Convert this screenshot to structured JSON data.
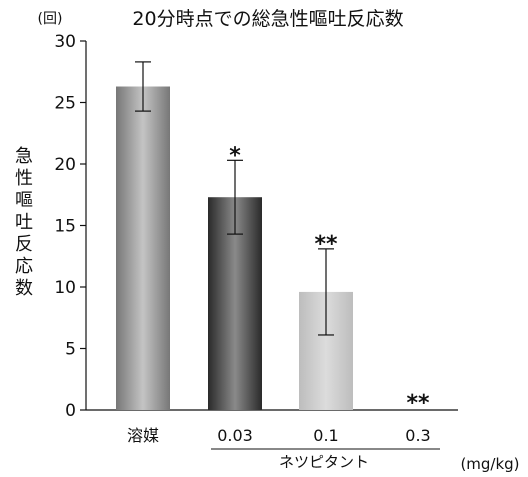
{
  "chart_data": {
    "type": "bar",
    "title": "20分時点での総急性嘔吐反応数",
    "unit_label": "(回)",
    "ylabel": "急性嘔吐反応数",
    "ylim": [
      0,
      30
    ],
    "yticks": [
      0,
      5,
      10,
      15,
      20,
      25,
      30
    ],
    "categories": [
      "溶媒",
      "0.03",
      "0.1",
      "0.3"
    ],
    "values": [
      26.3,
      17.3,
      9.6,
      0
    ],
    "error": [
      2.0,
      3.0,
      3.5,
      0
    ],
    "significance": [
      "",
      "*",
      "**",
      "**"
    ],
    "group_label": "ネツピタント",
    "x_unit": "(mg/kg)",
    "colors": {
      "bar_gradient": [
        [
          "#777777",
          "#c4c4c4",
          "#777777"
        ],
        [
          "#2a2a2a",
          "#8a8a8a",
          "#2a2a2a"
        ],
        [
          "#bdbdbd",
          "#dcdcdc",
          "#bdbdbd"
        ],
        [
          "#cccccc",
          "#eeeeee",
          "#cccccc"
        ]
      ]
    }
  }
}
